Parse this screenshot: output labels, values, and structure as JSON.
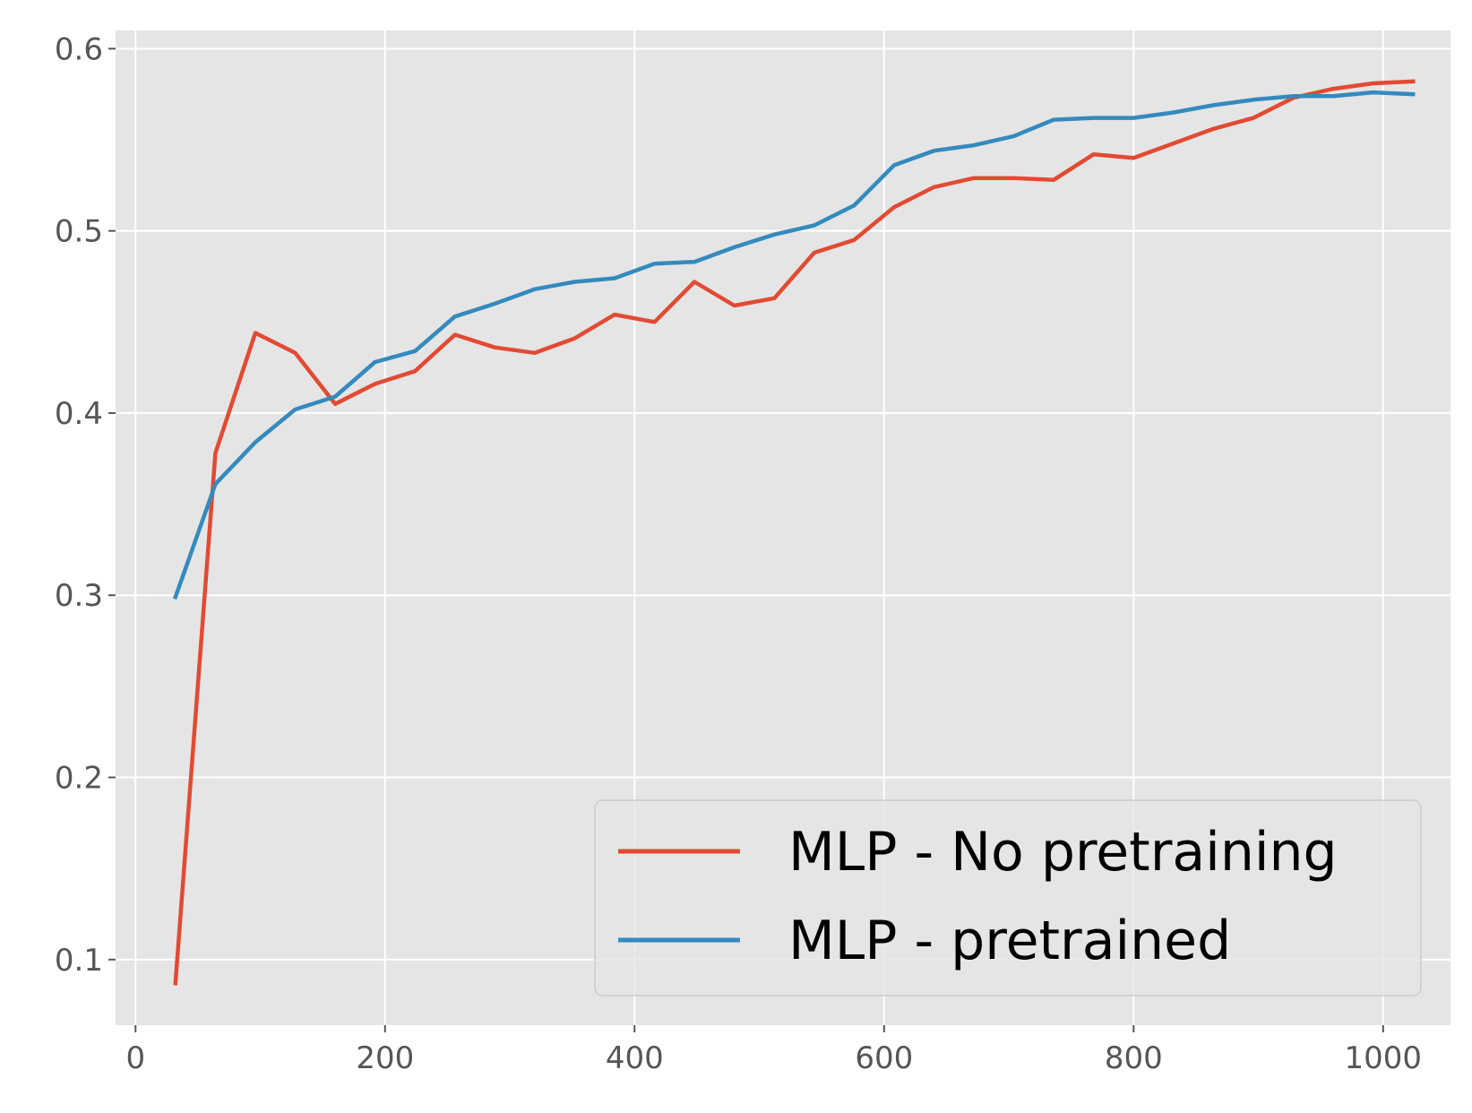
{
  "chart_data": {
    "type": "line",
    "title": "",
    "xlabel": "",
    "ylabel": "",
    "xlim": [
      -16,
      1054
    ],
    "ylim": [
      0.064,
      0.61
    ],
    "xticks": [
      0,
      200,
      400,
      600,
      800,
      1000
    ],
    "yticks": [
      0.1,
      0.2,
      0.3,
      0.4,
      0.5,
      0.6
    ],
    "xtick_labels": [
      "0",
      "200",
      "400",
      "600",
      "800",
      "1000"
    ],
    "ytick_labels": [
      "0.1",
      "0.2",
      "0.3",
      "0.4",
      "0.5",
      "0.6"
    ],
    "grid": true,
    "legend_position": "lower right",
    "colors": {
      "background": "#E5E5E5",
      "grid": "#FFFFFF",
      "tick": "#555555"
    },
    "x": [
      32,
      64,
      96,
      128,
      160,
      192,
      224,
      256,
      288,
      320,
      352,
      384,
      416,
      448,
      480,
      512,
      544,
      576,
      608,
      640,
      672,
      704,
      736,
      768,
      800,
      832,
      864,
      896,
      928,
      960,
      992,
      1024
    ],
    "series": [
      {
        "name": "MLP - No pretraining",
        "color": "#E24A33",
        "values": [
          0.087,
          0.378,
          0.444,
          0.433,
          0.405,
          0.416,
          0.423,
          0.443,
          0.436,
          0.433,
          0.441,
          0.454,
          0.45,
          0.472,
          0.459,
          0.463,
          0.488,
          0.495,
          0.513,
          0.524,
          0.529,
          0.529,
          0.528,
          0.542,
          0.54,
          0.548,
          0.556,
          0.562,
          0.573,
          0.578,
          0.581,
          0.582
        ]
      },
      {
        "name": "MLP - pretrained",
        "color": "#348ABD",
        "values": [
          0.299,
          0.361,
          0.384,
          0.402,
          0.409,
          0.428,
          0.434,
          0.453,
          0.46,
          0.468,
          0.472,
          0.474,
          0.482,
          0.483,
          0.491,
          0.498,
          0.503,
          0.514,
          0.536,
          0.544,
          0.547,
          0.552,
          0.561,
          0.562,
          0.562,
          0.565,
          0.569,
          0.572,
          0.574,
          0.574,
          0.576,
          0.575
        ]
      }
    ]
  }
}
